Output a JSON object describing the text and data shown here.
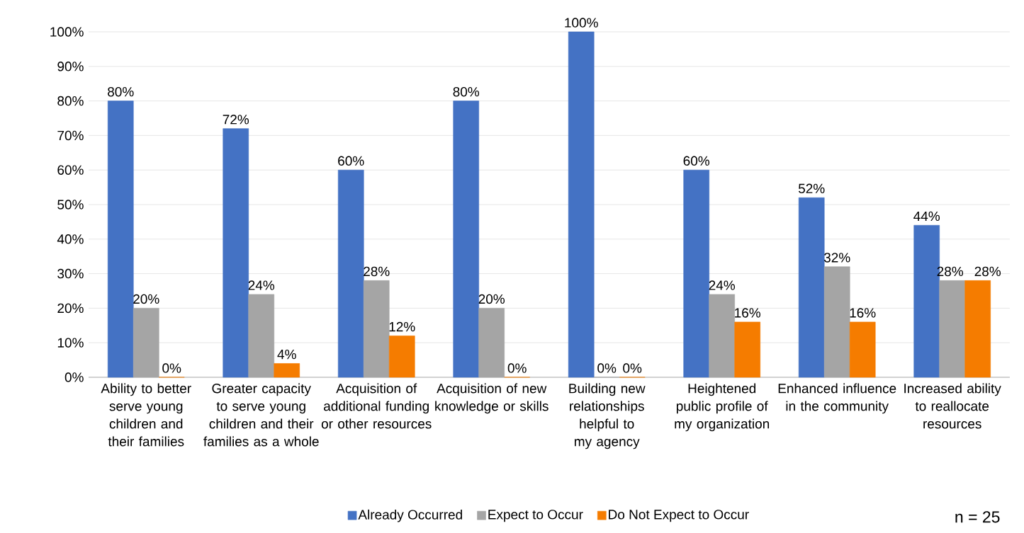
{
  "chart_data": {
    "type": "bar",
    "categories": [
      "Ability to better serve young children and their families",
      "Greater capacity to serve young children and their families as a whole",
      "Acquisition of additional funding or other resources",
      "Acquisition of new knowledge or skills",
      "Building new relationships helpful to my agency",
      "Heightened public profile of my organization",
      "Enhanced influence in the community",
      "Increased ability to reallocate resources"
    ],
    "series": [
      {
        "name": "Already Occurred",
        "color": "#4472c4",
        "values": [
          80,
          72,
          60,
          80,
          100,
          60,
          52,
          44
        ],
        "value_labels": [
          "80%",
          "72%",
          "60%",
          "80%",
          "100%",
          "60%",
          "52%",
          "44%"
        ]
      },
      {
        "name": "Expect to Occur",
        "color": "#a5a5a5",
        "values": [
          20,
          24,
          28,
          20,
          0,
          24,
          32,
          28
        ],
        "value_labels": [
          "20%",
          "24%",
          "28%",
          "20%",
          "0%",
          "24%",
          "32%",
          "28%"
        ]
      },
      {
        "name": "Do Not Expect to Occur",
        "color": "#f57c00",
        "values": [
          0,
          4,
          12,
          0,
          0,
          16,
          16,
          28
        ],
        "value_labels": [
          "0%",
          "4%",
          "12%",
          "0%",
          "0%",
          "16%",
          "16%",
          "28%"
        ]
      }
    ],
    "ylim": [
      0,
      100
    ],
    "yticks": [
      {
        "value": 0,
        "label": "0%"
      },
      {
        "value": 10,
        "label": "10%"
      },
      {
        "value": 20,
        "label": "20%"
      },
      {
        "value": 30,
        "label": "30%"
      },
      {
        "value": 40,
        "label": "40%"
      },
      {
        "value": 50,
        "label": "50%"
      },
      {
        "value": 60,
        "label": "60%"
      },
      {
        "value": 70,
        "label": "70%"
      },
      {
        "value": 80,
        "label": "80%"
      },
      {
        "value": 90,
        "label": "90%"
      },
      {
        "value": 100,
        "label": "100%"
      }
    ],
    "grid": "y",
    "legend": "bottom",
    "annotations": [
      "n = 25"
    ]
  }
}
